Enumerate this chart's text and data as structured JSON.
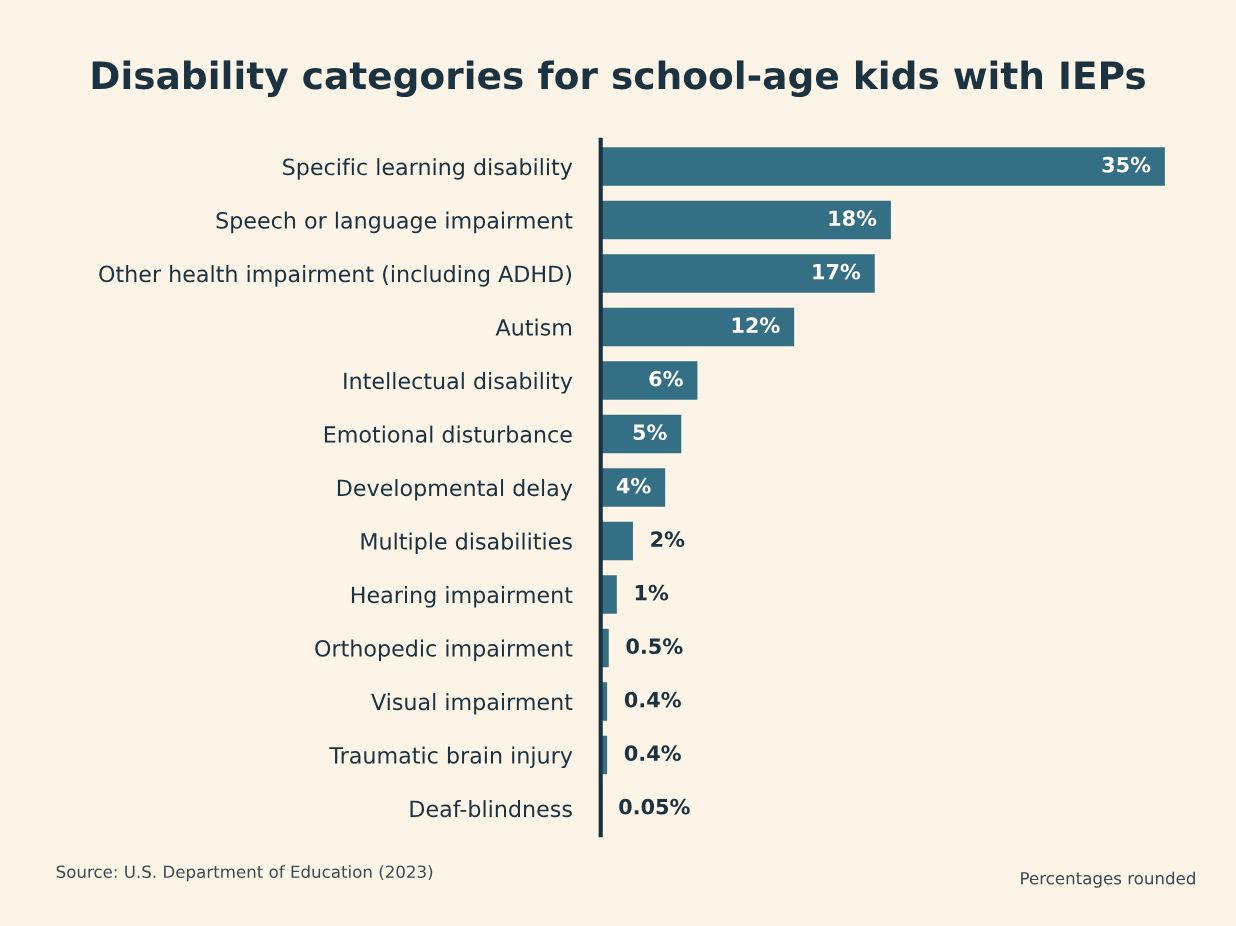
{
  "chart_data": {
    "type": "bar",
    "orientation": "horizontal",
    "title": "Disability categories for school-age kids with IEPs",
    "categories": [
      "Specific learning disability",
      "Speech or language impairment",
      "Other health impairment (including ADHD)",
      "Autism",
      "Intellectual disability",
      "Emotional disturbance",
      "Developmental delay",
      "Multiple disabilities",
      "Hearing impairment",
      "Orthopedic impairment",
      "Visual impairment",
      "Traumatic brain injury",
      "Deaf-blindness"
    ],
    "values": [
      35,
      18,
      17,
      12,
      6,
      5,
      4,
      2,
      1,
      0.5,
      0.4,
      0.4,
      0.05
    ],
    "value_labels": [
      "35%",
      "18%",
      "17%",
      "12%",
      "6%",
      "5%",
      "4%",
      "2%",
      "1%",
      "0.5%",
      "0.4%",
      "0.4%",
      "0.05%"
    ],
    "color": "#356f85",
    "xlim": [
      0,
      35
    ],
    "tick_labels": "y",
    "grid": false,
    "annotations": [
      "Source: U.S. Department of Education (2023)",
      "Percentages rounded"
    ]
  }
}
